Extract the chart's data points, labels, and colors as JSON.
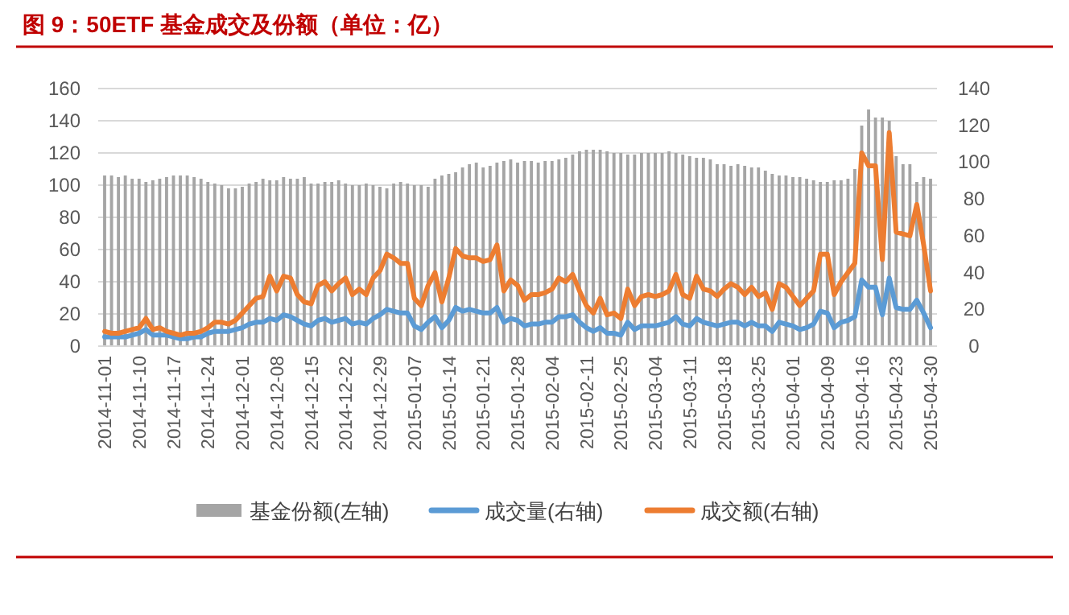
{
  "chart_data": {
    "type": "bar",
    "title": "图 9：50ETF 基金成交及份额（单位：亿）",
    "categories": [
      "2014-11-01",
      null,
      null,
      null,
      null,
      "2014-11-10",
      null,
      null,
      null,
      null,
      "2014-11-17",
      null,
      null,
      null,
      null,
      "2014-11-24",
      null,
      null,
      null,
      null,
      "2014-12-01",
      null,
      null,
      null,
      null,
      "2014-12-08",
      null,
      null,
      null,
      null,
      "2014-12-15",
      null,
      null,
      null,
      null,
      "2014-12-22",
      null,
      null,
      null,
      null,
      "2014-12-29",
      null,
      null,
      null,
      null,
      "2015-01-07",
      null,
      null,
      null,
      null,
      "2015-01-14",
      null,
      null,
      null,
      null,
      "2015-01-21",
      null,
      null,
      null,
      null,
      "2015-01-28",
      null,
      null,
      null,
      null,
      "2015-02-04",
      null,
      null,
      null,
      null,
      "2015-02-11",
      null,
      null,
      null,
      null,
      "2015-02-25",
      null,
      null,
      null,
      null,
      "2015-03-04",
      null,
      null,
      null,
      null,
      "2015-03-11",
      null,
      null,
      null,
      null,
      "2015-03-18",
      null,
      null,
      null,
      null,
      "2015-03-25",
      null,
      null,
      null,
      null,
      "2015-04-01",
      null,
      null,
      null,
      null,
      "2015-04-09",
      null,
      null,
      null,
      null,
      "2015-04-16",
      null,
      null,
      null,
      null,
      "2015-04-23",
      null,
      null,
      null,
      null,
      "2015-04-30"
    ],
    "series": [
      {
        "name": "基金份额(左轴)",
        "color": "#a5a5a5",
        "values": [
          106,
          106,
          105,
          106,
          104,
          104,
          102,
          103,
          104,
          105,
          106,
          106,
          106,
          105,
          104,
          102,
          101,
          100,
          98,
          98,
          99,
          101,
          102,
          104,
          103,
          103,
          105,
          104,
          104,
          105,
          101,
          101,
          102,
          102,
          103,
          101,
          100,
          100,
          101,
          100,
          99,
          98,
          101,
          102,
          101,
          100,
          100,
          99,
          104,
          106,
          107,
          108,
          111,
          113,
          114,
          111,
          112,
          114,
          115,
          116,
          114,
          115,
          115,
          114,
          115,
          115,
          116,
          117,
          119,
          121,
          122,
          122,
          122,
          121,
          120,
          120,
          119,
          119,
          120,
          120,
          120,
          120,
          121,
          120,
          119,
          118,
          117,
          117,
          116,
          113,
          113,
          112,
          113,
          112,
          111,
          111,
          109,
          107,
          106,
          106,
          105,
          105,
          104,
          103,
          102,
          102,
          103,
          103,
          104,
          110,
          137,
          147,
          142,
          142,
          140,
          118,
          113,
          113,
          102,
          105,
          104
        ]
      },
      {
        "name": "成交量(右轴)",
        "type": "line",
        "axis": "y2",
        "color": "#5b9bd5",
        "values": [
          5,
          5,
          5,
          5,
          6,
          7,
          9,
          6,
          6,
          6,
          5,
          4,
          4,
          5,
          5,
          7,
          8,
          8,
          8,
          9,
          10,
          12,
          13,
          13,
          15,
          14,
          17,
          16,
          14,
          12,
          11,
          14,
          15,
          13,
          14,
          15,
          12,
          13,
          12,
          15,
          17,
          20,
          19,
          18,
          18,
          11,
          9,
          13,
          16,
          10,
          14,
          21,
          19,
          20,
          19,
          18,
          18,
          21,
          13,
          15,
          14,
          11,
          12,
          12,
          13,
          13,
          16,
          16,
          17,
          13,
          10,
          8,
          10,
          7,
          7,
          6,
          13,
          9,
          11,
          11,
          11,
          12,
          13,
          16,
          12,
          11,
          15,
          13,
          12,
          11,
          12,
          13,
          13,
          11,
          13,
          11,
          11,
          8,
          13,
          12,
          11,
          9,
          10,
          12,
          19,
          18,
          10,
          13,
          14,
          16,
          36,
          32,
          32,
          17,
          37,
          21,
          20,
          20,
          25,
          18,
          10
        ]
      },
      {
        "name": "成交额(右轴)",
        "type": "line",
        "axis": "y2",
        "color": "#ed7d31",
        "values": [
          8,
          7,
          7,
          8,
          9,
          10,
          15,
          9,
          10,
          8,
          7,
          6,
          7,
          7,
          8,
          10,
          13,
          13,
          12,
          14,
          18,
          22,
          26,
          27,
          38,
          30,
          38,
          37,
          28,
          24,
          23,
          33,
          35,
          30,
          34,
          37,
          28,
          31,
          28,
          37,
          41,
          50,
          48,
          45,
          45,
          26,
          22,
          33,
          40,
          24,
          37,
          53,
          49,
          48,
          48,
          46,
          47,
          55,
          30,
          36,
          33,
          25,
          28,
          28,
          29,
          31,
          37,
          35,
          39,
          30,
          22,
          18,
          26,
          17,
          18,
          15,
          31,
          22,
          27,
          28,
          27,
          28,
          30,
          39,
          28,
          26,
          38,
          31,
          30,
          27,
          31,
          34,
          32,
          28,
          32,
          27,
          29,
          20,
          34,
          32,
          27,
          22,
          26,
          30,
          50,
          50,
          28,
          35,
          40,
          45,
          105,
          98,
          98,
          47,
          116,
          62,
          61,
          60,
          77,
          55,
          30
        ]
      }
    ],
    "ylim": [
      0,
      160
    ],
    "yticks": [
      0,
      20,
      40,
      60,
      80,
      100,
      120,
      140,
      160
    ],
    "y2lim": [
      0,
      140
    ],
    "y2ticks": [
      0,
      20,
      40,
      60,
      80,
      100,
      120,
      140
    ],
    "grid": "y",
    "legend": "bottom"
  }
}
